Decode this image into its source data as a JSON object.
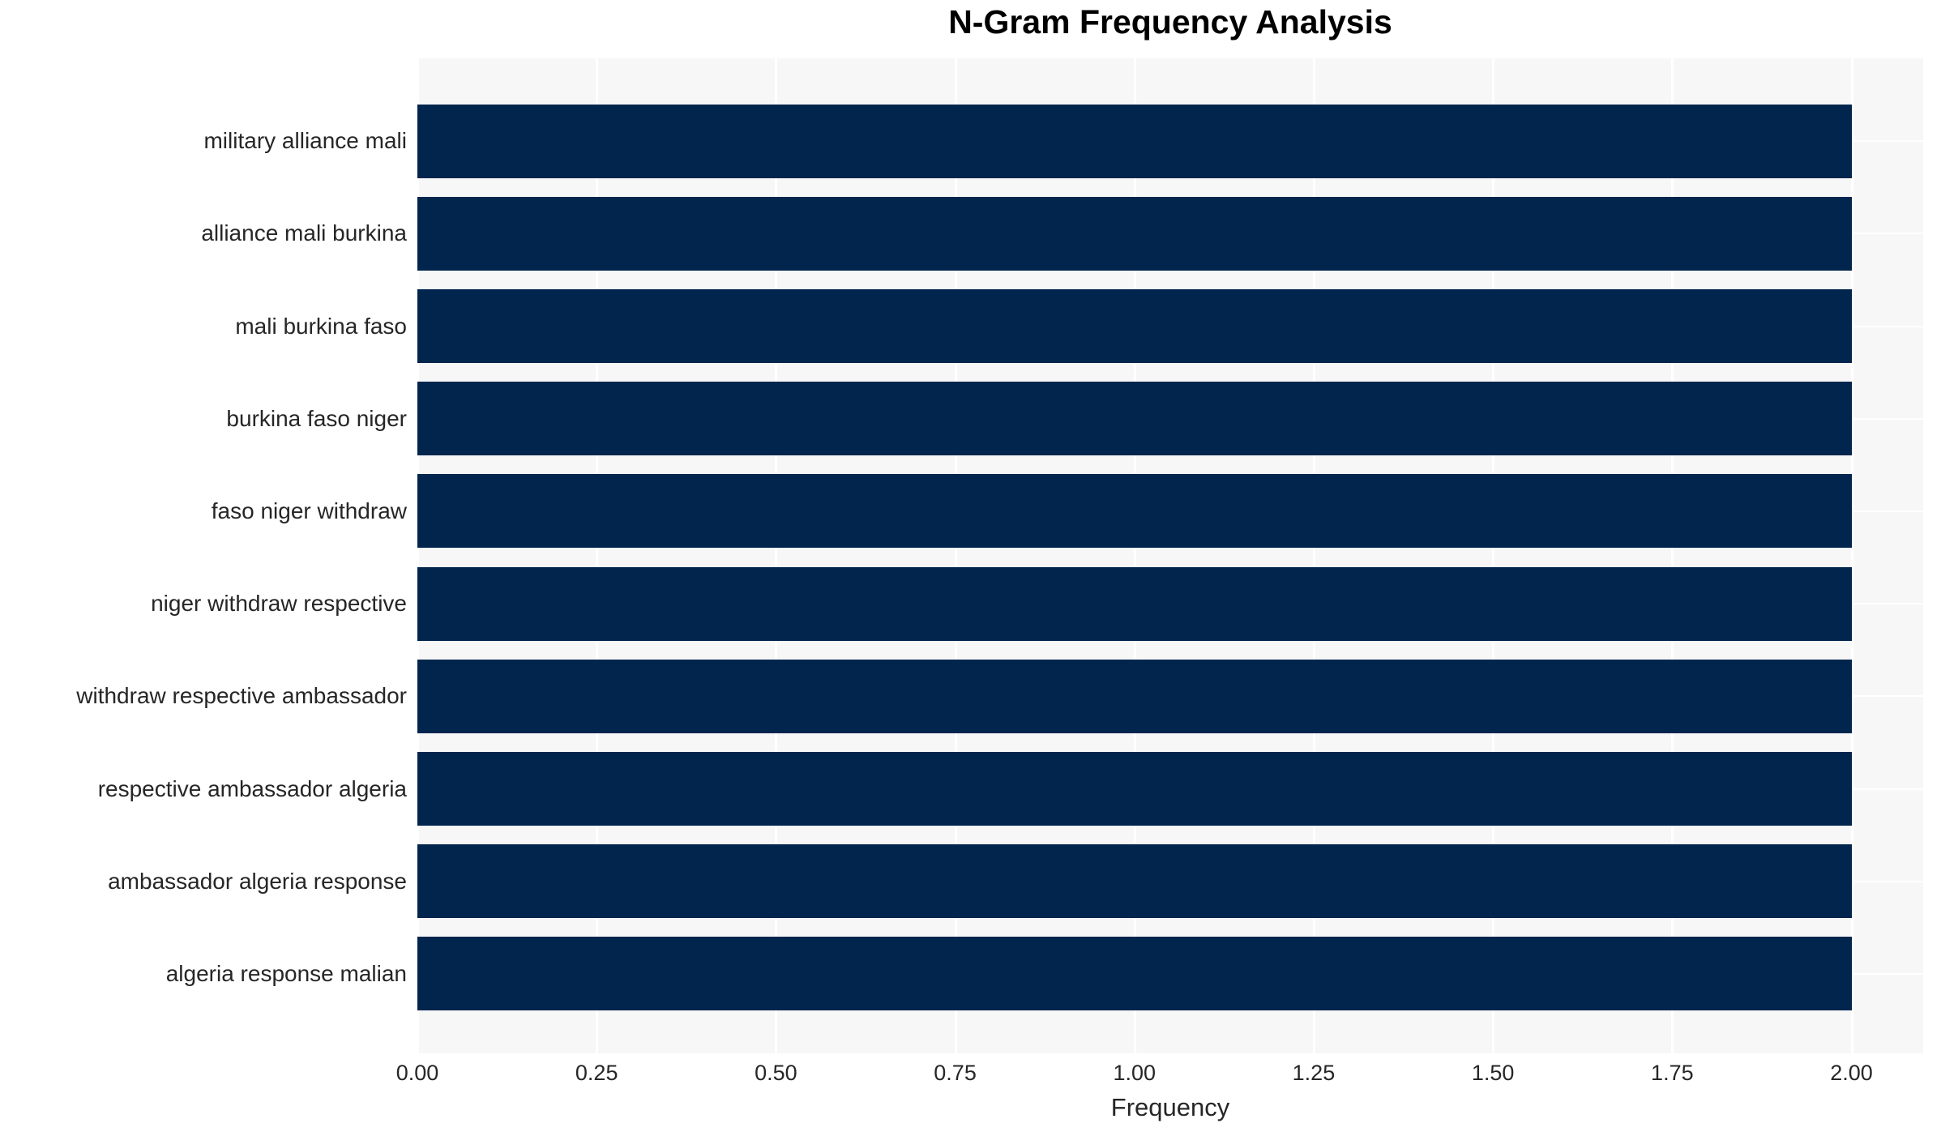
{
  "chart_data": {
    "type": "bar",
    "orientation": "horizontal",
    "title": "N-Gram Frequency Analysis",
    "xlabel": "Frequency",
    "ylabel": "",
    "categories": [
      "military alliance mali",
      "alliance mali burkina",
      "mali burkina faso",
      "burkina faso niger",
      "faso niger withdraw",
      "niger withdraw respective",
      "withdraw respective ambassador",
      "respective ambassador algeria",
      "ambassador algeria response",
      "algeria response malian"
    ],
    "values": [
      2,
      2,
      2,
      2,
      2,
      2,
      2,
      2,
      2,
      2
    ],
    "xlim": [
      0,
      2.1
    ],
    "xticks": [
      {
        "value": 0.0,
        "label": "0.00"
      },
      {
        "value": 0.25,
        "label": "0.25"
      },
      {
        "value": 0.5,
        "label": "0.50"
      },
      {
        "value": 0.75,
        "label": "0.75"
      },
      {
        "value": 1.0,
        "label": "1.00"
      },
      {
        "value": 1.25,
        "label": "1.25"
      },
      {
        "value": 1.5,
        "label": "1.50"
      },
      {
        "value": 1.75,
        "label": "1.75"
      },
      {
        "value": 2.0,
        "label": "2.00"
      }
    ],
    "grid": true,
    "legend": null,
    "colors": {
      "bar": "#02254e",
      "plot_background": "#f7f7f7",
      "gridline": "#ffffff",
      "tick_text": "#262626",
      "title_text": "#000000"
    }
  }
}
